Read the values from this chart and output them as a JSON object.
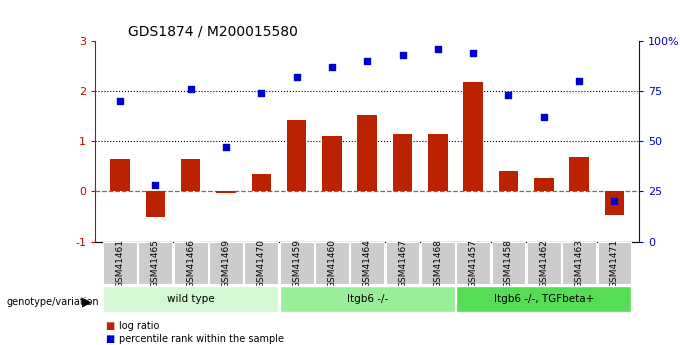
{
  "title": "GDS1874 / M200015580",
  "samples": [
    "GSM41461",
    "GSM41465",
    "GSM41466",
    "GSM41469",
    "GSM41470",
    "GSM41459",
    "GSM41460",
    "GSM41464",
    "GSM41467",
    "GSM41468",
    "GSM41457",
    "GSM41458",
    "GSM41462",
    "GSM41463",
    "GSM41471"
  ],
  "log_ratio": [
    0.65,
    -0.52,
    0.65,
    -0.04,
    0.35,
    1.42,
    1.1,
    1.52,
    1.15,
    1.15,
    2.18,
    0.4,
    0.27,
    0.68,
    -0.47
  ],
  "percentile_rank": [
    70,
    28,
    76,
    47,
    74,
    82,
    87,
    90,
    93,
    96,
    94,
    73,
    62,
    80,
    20
  ],
  "groups": [
    {
      "label": "wild type",
      "indices": [
        0,
        1,
        2,
        3,
        4
      ],
      "color": "#d4f7d4"
    },
    {
      "label": "Itgb6 -/-",
      "indices": [
        5,
        6,
        7,
        8,
        9
      ],
      "color": "#99ee99"
    },
    {
      "label": "Itgb6 -/-, TGFbeta+",
      "indices": [
        10,
        11,
        12,
        13,
        14
      ],
      "color": "#55dd55"
    }
  ],
  "bar_color": "#bb2200",
  "dot_color": "#0000cc",
  "ytick_color": "#cc0000",
  "ylim_left": [
    -1,
    3
  ],
  "ylim_right": [
    0,
    100
  ],
  "yticks_left": [
    -1,
    0,
    1,
    2,
    3
  ],
  "yticks_right": [
    0,
    25,
    50,
    75,
    100
  ],
  "hline_dotted": [
    1.0,
    2.0
  ],
  "legend_items": [
    {
      "label": "log ratio",
      "color": "#bb2200"
    },
    {
      "label": "percentile rank within the sample",
      "color": "#0000cc"
    }
  ],
  "genotype_label": "genotype/variation"
}
